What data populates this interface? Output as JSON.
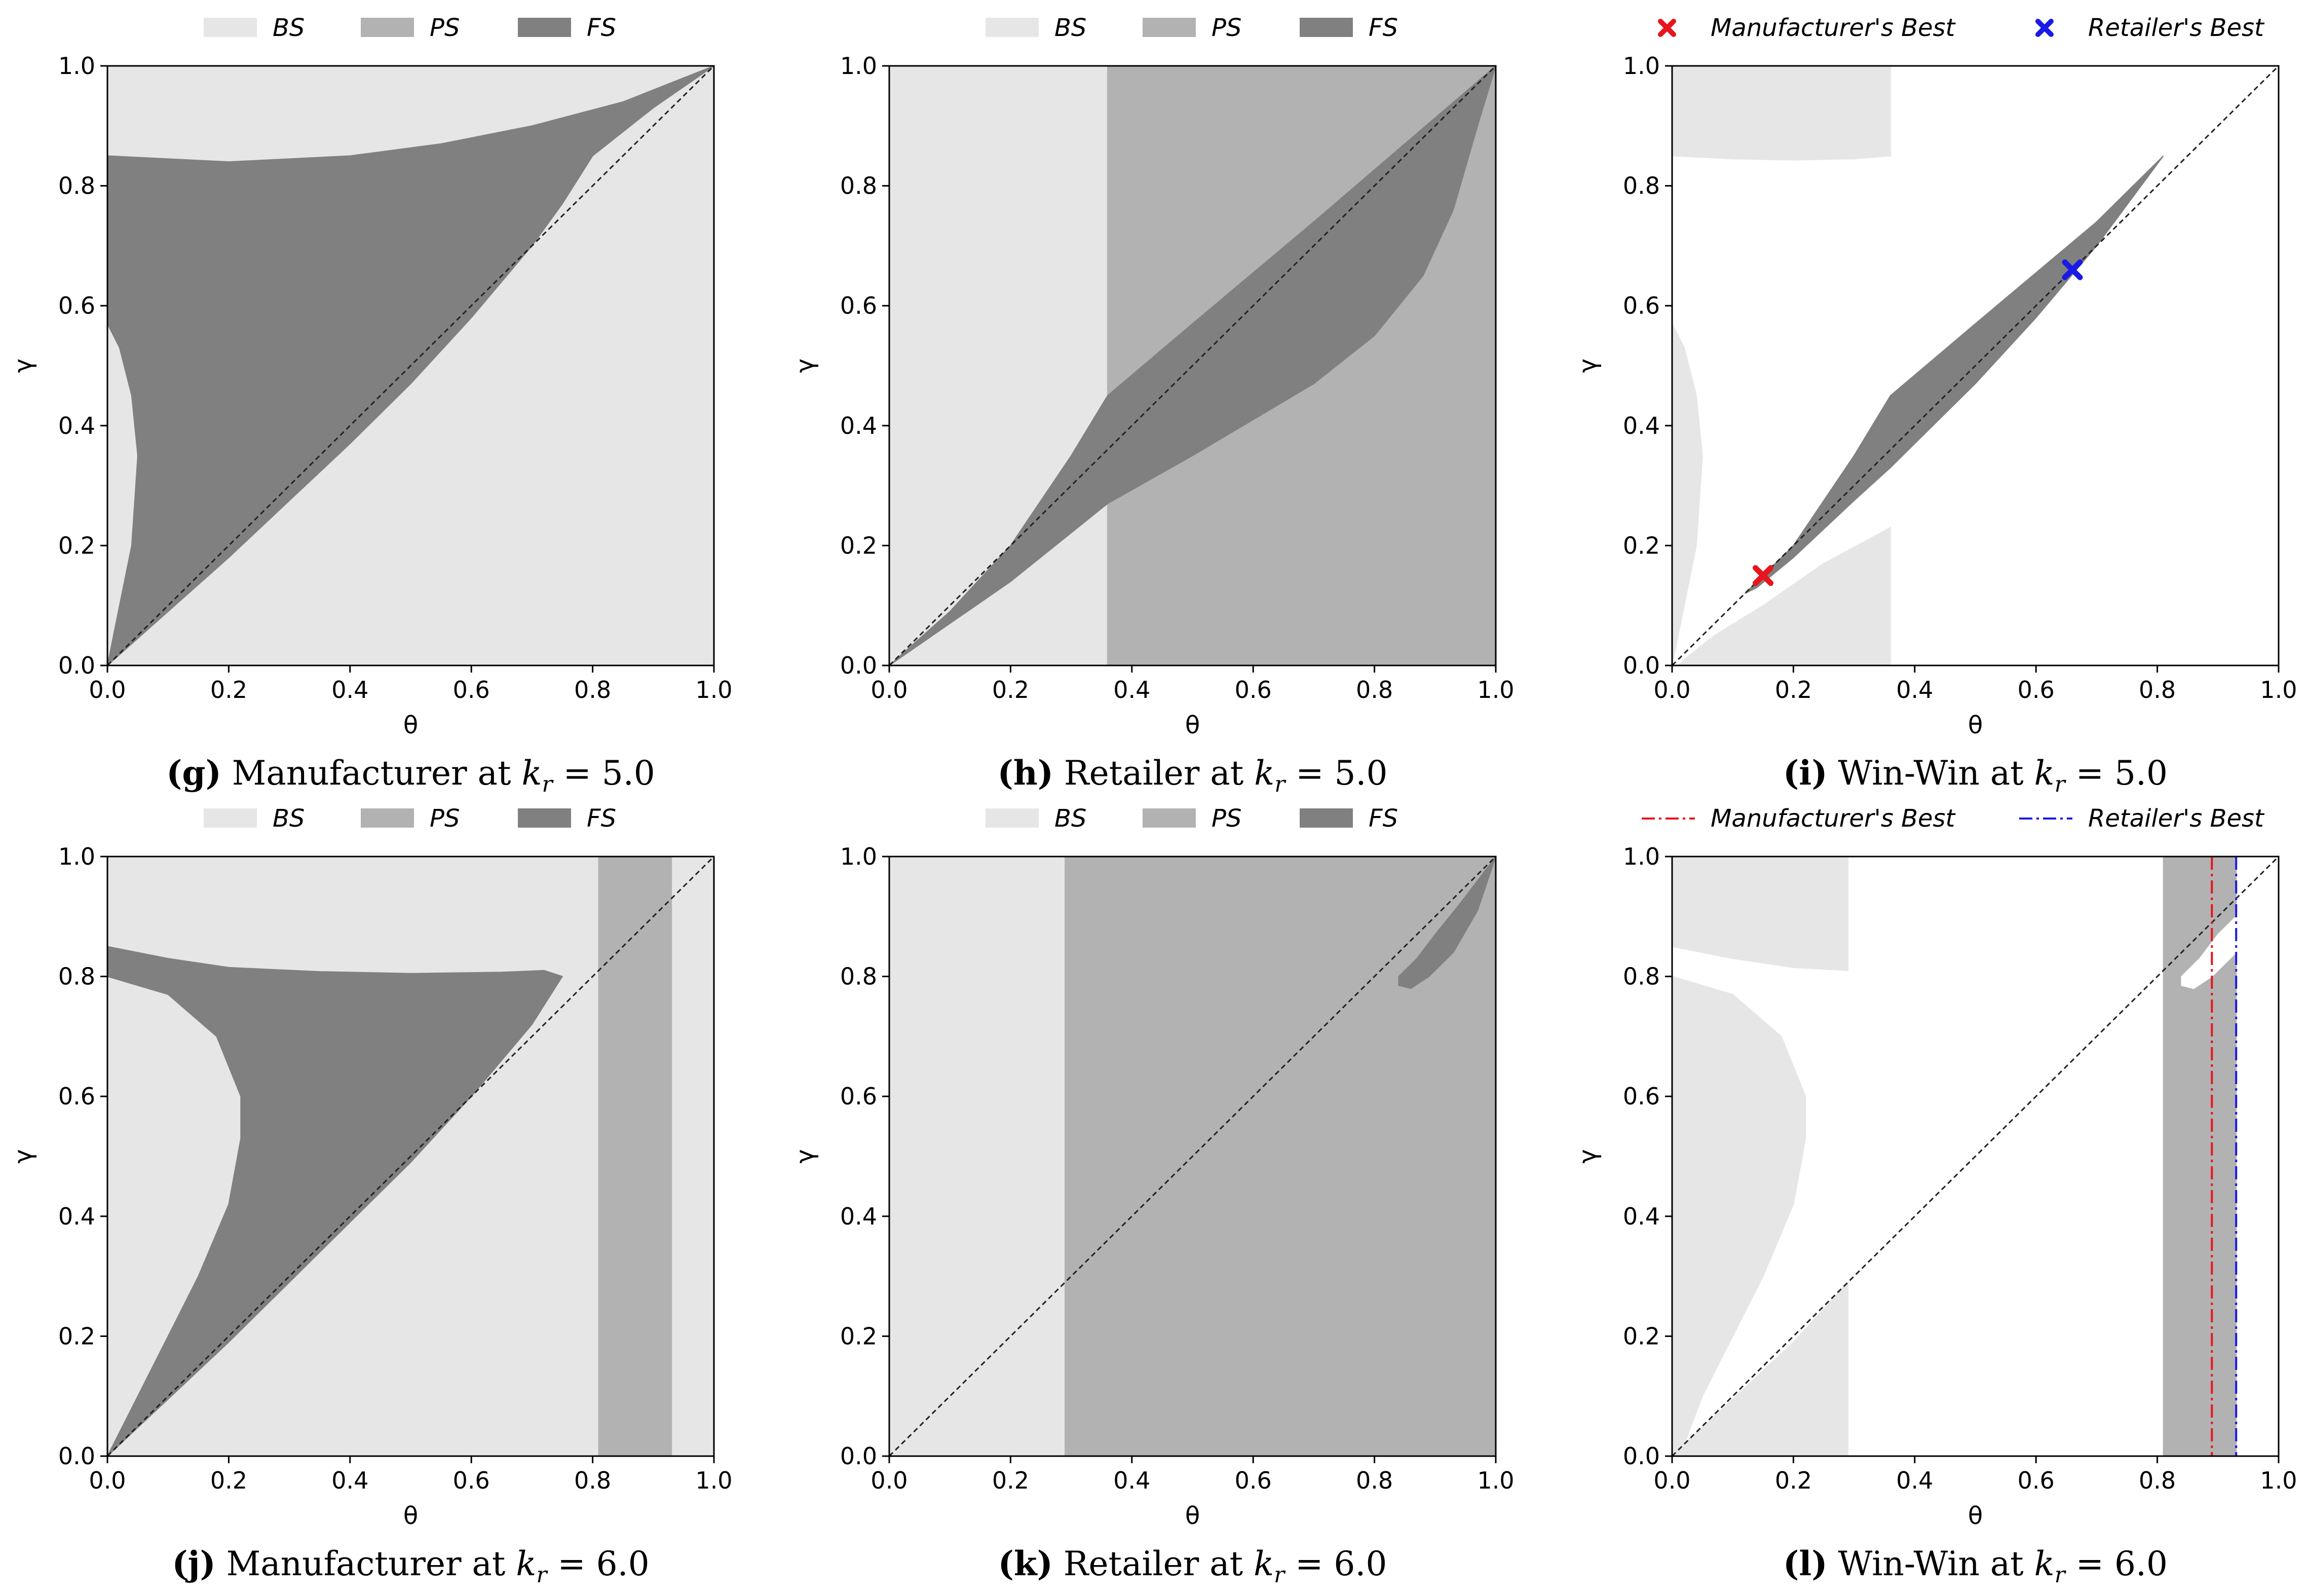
{
  "chart_data": [
    {
      "panel": "g",
      "type": "region",
      "caption_letter": "(g)",
      "caption_text": "Manufacturer at",
      "caption_math": "k",
      "caption_sub": "r",
      "caption_value": "= 5.0",
      "xlabel": "θ",
      "ylabel": "γ",
      "xlim": [
        0,
        1
      ],
      "ylim": [
        0,
        1
      ],
      "xticks": [
        "0.0",
        "0.2",
        "0.4",
        "0.6",
        "0.8",
        "1.0"
      ],
      "yticks": [
        "0.0",
        "0.2",
        "0.4",
        "0.6",
        "0.8",
        "1.0"
      ],
      "legend": [
        {
          "label": "BS",
          "color": "#e6e6e6"
        },
        {
          "label": "PS",
          "color": "#b2b2b2"
        },
        {
          "label": "FS",
          "color": "#808080"
        }
      ],
      "background": "#e6e6e6",
      "regions": [
        {
          "label": "FS",
          "color": "#808080",
          "points": [
            [
              0,
              0.85
            ],
            [
              0.2,
              0.84
            ],
            [
              0.4,
              0.85
            ],
            [
              0.55,
              0.87
            ],
            [
              0.7,
              0.9
            ],
            [
              0.85,
              0.94
            ],
            [
              1,
              1
            ],
            [
              0.9,
              0.93
            ],
            [
              0.8,
              0.85
            ],
            [
              0.75,
              0.77
            ],
            [
              0.7,
              0.7
            ],
            [
              0.6,
              0.58
            ],
            [
              0.5,
              0.47
            ],
            [
              0.4,
              0.37
            ],
            [
              0.3,
              0.275
            ],
            [
              0.2,
              0.18
            ],
            [
              0.1,
              0.09
            ],
            [
              0,
              0
            ],
            [
              0.02,
              0.1
            ],
            [
              0.04,
              0.2
            ],
            [
              0.05,
              0.35
            ],
            [
              0.04,
              0.45
            ],
            [
              0.02,
              0.53
            ],
            [
              0,
              0.57
            ]
          ]
        }
      ],
      "diagonal": true
    },
    {
      "panel": "h",
      "type": "region",
      "caption_letter": "(h)",
      "caption_text": "Retailer at",
      "caption_math": "k",
      "caption_sub": "r",
      "caption_value": "= 5.0",
      "xlabel": "θ",
      "ylabel": "γ",
      "xlim": [
        0,
        1
      ],
      "ylim": [
        0,
        1
      ],
      "xticks": [
        "0.0",
        "0.2",
        "0.4",
        "0.6",
        "0.8",
        "1.0"
      ],
      "yticks": [
        "0.0",
        "0.2",
        "0.4",
        "0.6",
        "0.8",
        "1.0"
      ],
      "legend": [
        {
          "label": "BS",
          "color": "#e6e6e6"
        },
        {
          "label": "PS",
          "color": "#b2b2b2"
        },
        {
          "label": "FS",
          "color": "#808080"
        }
      ],
      "background": "#e6e6e6",
      "regions": [
        {
          "label": "PS",
          "color": "#b2b2b2",
          "points": [
            [
              0.36,
              0
            ],
            [
              1,
              0
            ],
            [
              1,
              1
            ],
            [
              0.36,
              1
            ]
          ]
        },
        {
          "label": "FS",
          "color": "#808080",
          "points": [
            [
              0,
              0
            ],
            [
              0.1,
              0.09
            ],
            [
              0.2,
              0.2
            ],
            [
              0.3,
              0.35
            ],
            [
              0.36,
              0.45
            ],
            [
              0.5,
              0.57
            ],
            [
              0.7,
              0.74
            ],
            [
              0.85,
              0.87
            ],
            [
              1,
              1
            ],
            [
              0.97,
              0.9
            ],
            [
              0.93,
              0.76
            ],
            [
              0.88,
              0.65
            ],
            [
              0.8,
              0.55
            ],
            [
              0.7,
              0.47
            ],
            [
              0.6,
              0.41
            ],
            [
              0.5,
              0.35
            ],
            [
              0.36,
              0.27
            ],
            [
              0.2,
              0.14
            ],
            [
              0.1,
              0.07
            ]
          ]
        }
      ],
      "diagonal": true
    },
    {
      "panel": "i",
      "type": "region",
      "caption_letter": "(i)",
      "caption_text": "Win-Win at",
      "caption_math": "k",
      "caption_sub": "r",
      "caption_value": "= 5.0",
      "xlabel": "θ",
      "ylabel": "γ",
      "xlim": [
        0,
        1
      ],
      "ylim": [
        0,
        1
      ],
      "xticks": [
        "0.0",
        "0.2",
        "0.4",
        "0.6",
        "0.8",
        "1.0"
      ],
      "yticks": [
        "0.0",
        "0.2",
        "0.4",
        "0.6",
        "0.8",
        "1.0"
      ],
      "legend_markers": [
        {
          "label": "Manufacturer's Best",
          "color": "#e8141e",
          "kind": "x"
        },
        {
          "label": "Retailer's Best",
          "color": "#1a1ae6",
          "kind": "x"
        }
      ],
      "background": "#ffffff",
      "regions": [
        {
          "label": "BS",
          "color": "#e6e6e6",
          "points": [
            [
              0,
              0.85
            ],
            [
              0.1,
              0.845
            ],
            [
              0.2,
              0.843
            ],
            [
              0.3,
              0.845
            ],
            [
              0.36,
              0.85
            ],
            [
              0.36,
              1
            ],
            [
              0,
              1
            ]
          ]
        },
        {
          "label": "BS",
          "color": "#e6e6e6",
          "points": [
            [
              0,
              0
            ],
            [
              0.02,
              0.1
            ],
            [
              0.04,
              0.2
            ],
            [
              0.05,
              0.35
            ],
            [
              0.04,
              0.45
            ],
            [
              0.02,
              0.53
            ],
            [
              0,
              0.57
            ]
          ]
        },
        {
          "label": "BS",
          "color": "#e6e6e6",
          "points": [
            [
              0.01,
              0
            ],
            [
              0.36,
              0
            ],
            [
              0.36,
              0.23
            ],
            [
              0.25,
              0.17
            ],
            [
              0.15,
              0.1
            ],
            [
              0.07,
              0.05
            ],
            [
              0.02,
              0.01
            ]
          ]
        },
        {
          "label": "FS",
          "color": "#808080",
          "points": [
            [
              0.12,
              0.12
            ],
            [
              0.2,
              0.2
            ],
            [
              0.3,
              0.35
            ],
            [
              0.36,
              0.45
            ],
            [
              0.5,
              0.57
            ],
            [
              0.7,
              0.74
            ],
            [
              0.81,
              0.85
            ],
            [
              0.7,
              0.7
            ],
            [
              0.6,
              0.58
            ],
            [
              0.5,
              0.47
            ],
            [
              0.4,
              0.37
            ],
            [
              0.36,
              0.33
            ],
            [
              0.3,
              0.275
            ],
            [
              0.2,
              0.18
            ],
            [
              0.14,
              0.13
            ]
          ]
        }
      ],
      "points": [
        {
          "label": "Manufacturer's Best",
          "x": 0.15,
          "y": 0.15,
          "color": "#e8141e"
        },
        {
          "label": "Retailer's Best",
          "x": 0.66,
          "y": 0.66,
          "color": "#1a1ae6"
        }
      ],
      "diagonal": true
    },
    {
      "panel": "j",
      "type": "region",
      "caption_letter": "(j)",
      "caption_text": "Manufacturer at",
      "caption_math": "k",
      "caption_sub": "r",
      "caption_value": "= 6.0",
      "xlabel": "θ",
      "ylabel": "γ",
      "xlim": [
        0,
        1
      ],
      "ylim": [
        0,
        1
      ],
      "xticks": [
        "0.0",
        "0.2",
        "0.4",
        "0.6",
        "0.8",
        "1.0"
      ],
      "yticks": [
        "0.0",
        "0.2",
        "0.4",
        "0.6",
        "0.8",
        "1.0"
      ],
      "legend": [
        {
          "label": "BS",
          "color": "#e6e6e6"
        },
        {
          "label": "PS",
          "color": "#b2b2b2"
        },
        {
          "label": "FS",
          "color": "#808080"
        }
      ],
      "background": "#e6e6e6",
      "regions": [
        {
          "label": "PS",
          "color": "#b2b2b2",
          "points": [
            [
              0.81,
              0
            ],
            [
              0.93,
              0
            ],
            [
              0.93,
              1
            ],
            [
              0.81,
              1
            ]
          ]
        },
        {
          "label": "FS",
          "color": "#808080",
          "points": [
            [
              0,
              0.85
            ],
            [
              0.1,
              0.83
            ],
            [
              0.2,
              0.815
            ],
            [
              0.35,
              0.808
            ],
            [
              0.5,
              0.805
            ],
            [
              0.65,
              0.807
            ],
            [
              0.72,
              0.81
            ],
            [
              0.75,
              0.8
            ],
            [
              0.7,
              0.72
            ],
            [
              0.6,
              0.6
            ],
            [
              0.5,
              0.49
            ],
            [
              0.4,
              0.39
            ],
            [
              0.3,
              0.29
            ],
            [
              0.2,
              0.19
            ],
            [
              0.1,
              0.095
            ],
            [
              0,
              0
            ],
            [
              0.05,
              0.1
            ],
            [
              0.1,
              0.2
            ],
            [
              0.15,
              0.3
            ],
            [
              0.2,
              0.42
            ],
            [
              0.22,
              0.53
            ],
            [
              0.22,
              0.6
            ],
            [
              0.18,
              0.7
            ],
            [
              0.1,
              0.77
            ],
            [
              0,
              0.8
            ]
          ]
        }
      ],
      "diagonal": true
    },
    {
      "panel": "k",
      "type": "region",
      "caption_letter": "(k)",
      "caption_text": "Retailer at",
      "caption_math": "k",
      "caption_sub": "r",
      "caption_value": "= 6.0",
      "xlabel": "θ",
      "ylabel": "γ",
      "xlim": [
        0,
        1
      ],
      "ylim": [
        0,
        1
      ],
      "xticks": [
        "0.0",
        "0.2",
        "0.4",
        "0.6",
        "0.8",
        "1.0"
      ],
      "yticks": [
        "0.0",
        "0.2",
        "0.4",
        "0.6",
        "0.8",
        "1.0"
      ],
      "legend": [
        {
          "label": "BS",
          "color": "#e6e6e6"
        },
        {
          "label": "PS",
          "color": "#b2b2b2"
        },
        {
          "label": "FS",
          "color": "#808080"
        }
      ],
      "background": "#e6e6e6",
      "regions": [
        {
          "label": "PS",
          "color": "#b2b2b2",
          "points": [
            [
              0.29,
              0
            ],
            [
              1,
              0
            ],
            [
              1,
              1
            ],
            [
              0.29,
              1
            ]
          ]
        },
        {
          "label": "FS",
          "color": "#808080",
          "points": [
            [
              0.84,
              0.8
            ],
            [
              0.87,
              0.83
            ],
            [
              0.9,
              0.87
            ],
            [
              0.94,
              0.92
            ],
            [
              1,
              1
            ],
            [
              0.97,
              0.91
            ],
            [
              0.93,
              0.84
            ],
            [
              0.89,
              0.8
            ],
            [
              0.86,
              0.78
            ],
            [
              0.84,
              0.785
            ]
          ]
        }
      ],
      "diagonal": true
    },
    {
      "panel": "l",
      "type": "region",
      "caption_letter": "(l)",
      "caption_text": "Win-Win at",
      "caption_math": "k",
      "caption_sub": "r",
      "caption_value": "= 6.0",
      "xlabel": "θ",
      "ylabel": "γ",
      "xlim": [
        0,
        1
      ],
      "ylim": [
        0,
        1
      ],
      "xticks": [
        "0.0",
        "0.2",
        "0.4",
        "0.6",
        "0.8",
        "1.0"
      ],
      "yticks": [
        "0.0",
        "0.2",
        "0.4",
        "0.6",
        "0.8",
        "1.0"
      ],
      "legend_markers": [
        {
          "label": "Manufacturer's Best",
          "color": "#e8141e",
          "kind": "line"
        },
        {
          "label": "Retailer's Best",
          "color": "#1a1ae6",
          "kind": "line"
        }
      ],
      "background": "#ffffff",
      "regions": [
        {
          "label": "BS",
          "color": "#e6e6e6",
          "points": [
            [
              0,
              0.85
            ],
            [
              0.1,
              0.83
            ],
            [
              0.2,
              0.815
            ],
            [
              0.29,
              0.81
            ],
            [
              0.29,
              1
            ],
            [
              0,
              1
            ]
          ]
        },
        {
          "label": "BS",
          "color": "#e6e6e6",
          "points": [
            [
              0,
              0
            ],
            [
              0.29,
              0
            ],
            [
              0.29,
              0.29
            ],
            [
              0.2,
              0.19
            ],
            [
              0.1,
              0.095
            ],
            [
              0.02,
              0.02
            ],
            [
              0.05,
              0.1
            ],
            [
              0.1,
              0.2
            ],
            [
              0.15,
              0.3
            ],
            [
              0.2,
              0.42
            ],
            [
              0.22,
              0.53
            ],
            [
              0.22,
              0.6
            ],
            [
              0.18,
              0.7
            ],
            [
              0.1,
              0.77
            ],
            [
              0,
              0.8
            ]
          ]
        },
        {
          "label": "PS",
          "color": "#b2b2b2",
          "points": [
            [
              0.81,
              0
            ],
            [
              0.93,
              0
            ],
            [
              0.93,
              1
            ],
            [
              0.81,
              1
            ]
          ]
        },
        {
          "label": "",
          "color": "#ffffff",
          "points": [
            [
              0.84,
              0.8
            ],
            [
              0.87,
              0.83
            ],
            [
              0.9,
              0.87
            ],
            [
              0.93,
              0.9
            ],
            [
              0.93,
              0.84
            ],
            [
              0.89,
              0.8
            ],
            [
              0.86,
              0.78
            ],
            [
              0.84,
              0.785
            ]
          ]
        }
      ],
      "vlines": [
        {
          "label": "Manufacturer's Best",
          "x": 0.89,
          "color": "#e8141e"
        },
        {
          "label": "Retailer's Best",
          "x": 0.93,
          "color": "#1a1ae6"
        }
      ],
      "diagonal": true
    }
  ]
}
